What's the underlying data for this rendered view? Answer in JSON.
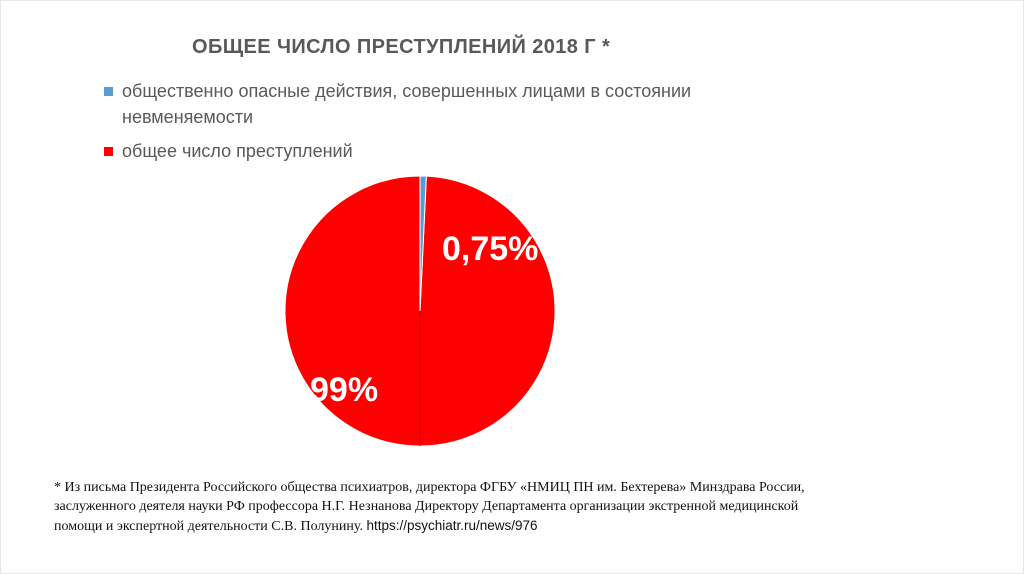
{
  "chart_data": {
    "type": "pie",
    "title": "ОБЩЕЕ ЧИСЛО ПРЕСТУПЛЕНИЙ 2018 Г *",
    "series": [
      {
        "name": "общественно опасные действия, совершенных лицами в состоянии невменяемости",
        "value": 0.75,
        "label": "0,75%",
        "color": "#5b9bd5"
      },
      {
        "name": "общее число преступлений",
        "value": 99,
        "label": "99%",
        "color": "#ff0000"
      }
    ],
    "legend": "top"
  },
  "footnote": {
    "text": "* Из письма Президента Российского общества психиатров, директора ФГБУ «НМИЦ ПН им. Бехтерева» Минздрава России, заслуженного деятеля науки РФ профессора Н.Г. Незнанова Директору Департамента организации экстренной медицинской помощи и экспертной деятельности С.В. Полунину.",
    "link": "https://psychiatr.ru/news/976"
  }
}
